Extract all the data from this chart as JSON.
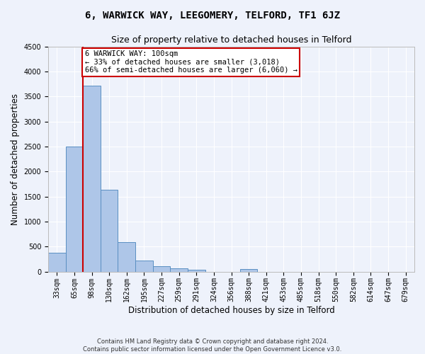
{
  "title": "6, WARWICK WAY, LEEGOMERY, TELFORD, TF1 6JZ",
  "subtitle": "Size of property relative to detached houses in Telford",
  "xlabel": "Distribution of detached houses by size in Telford",
  "ylabel": "Number of detached properties",
  "footer_line1": "Contains HM Land Registry data © Crown copyright and database right 2024.",
  "footer_line2": "Contains public sector information licensed under the Open Government Licence v3.0.",
  "bar_labels": [
    "33sqm",
    "65sqm",
    "98sqm",
    "130sqm",
    "162sqm",
    "195sqm",
    "227sqm",
    "259sqm",
    "291sqm",
    "324sqm",
    "356sqm",
    "388sqm",
    "421sqm",
    "453sqm",
    "485sqm",
    "518sqm",
    "550sqm",
    "582sqm",
    "614sqm",
    "647sqm",
    "679sqm"
  ],
  "bar_values": [
    370,
    2500,
    3720,
    1630,
    590,
    220,
    105,
    60,
    40,
    0,
    0,
    50,
    0,
    0,
    0,
    0,
    0,
    0,
    0,
    0,
    0
  ],
  "bar_color": "#aec6e8",
  "bar_edgecolor": "#5a8fc2",
  "ylim": [
    0,
    4500
  ],
  "yticks": [
    0,
    500,
    1000,
    1500,
    2000,
    2500,
    3000,
    3500,
    4000,
    4500
  ],
  "property_bin_index": 2,
  "annotation_title": "6 WARWICK WAY: 100sqm",
  "annotation_line1": "← 33% of detached houses are smaller (3,018)",
  "annotation_line2": "66% of semi-detached houses are larger (6,060) →",
  "annotation_box_color": "#ffffff",
  "annotation_box_edgecolor": "#cc0000",
  "background_color": "#eef2fb",
  "grid_color": "#ffffff",
  "title_fontsize": 10,
  "subtitle_fontsize": 9,
  "axis_label_fontsize": 8.5,
  "tick_fontsize": 7,
  "annotation_fontsize": 7.5
}
